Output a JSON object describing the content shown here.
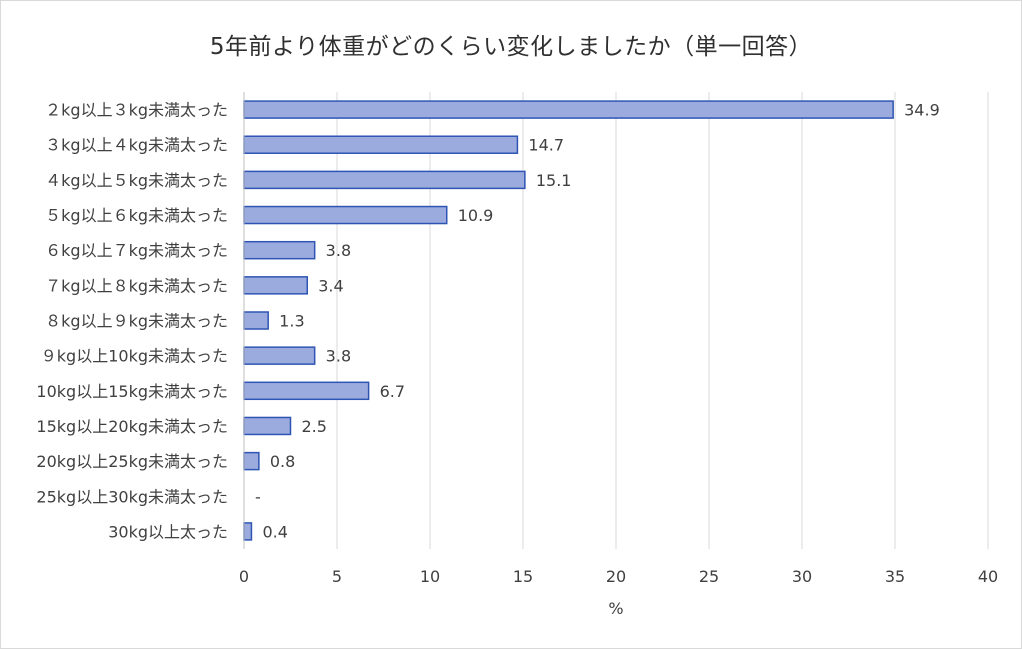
{
  "chart_data": {
    "type": "bar",
    "orientation": "horizontal",
    "title": "5年前より体重がどのくらい変化しましたか（単一回答）",
    "xlabel": "%",
    "ylabel": "",
    "xlim": [
      0,
      40
    ],
    "xticks": [
      0,
      5,
      10,
      15,
      20,
      25,
      30,
      35,
      40
    ],
    "grid": true,
    "legend": "none",
    "bar_color": "#9cabde",
    "bar_border_color": "#2f55b4",
    "categories": [
      "２kg以上３kg未満太った",
      "３kg以上４kg未満太った",
      "４kg以上５kg未満太った",
      "５kg以上６kg未満太った",
      "６kg以上７kg未満太った",
      "７kg以上８kg未満太った",
      "８kg以上９kg未満太った",
      "９kg以上10kg未満太った",
      "10kg以上15kg未満太った",
      "15kg以上20kg未満太った",
      "20kg以上25kg未満太った",
      "25kg以上30kg未満太った",
      "30kg以上太った"
    ],
    "values": [
      34.9,
      14.7,
      15.1,
      10.9,
      3.8,
      3.4,
      1.3,
      3.8,
      6.7,
      2.5,
      0.8,
      null,
      0.4
    ],
    "data_labels": [
      "34.9",
      "14.7",
      "15.1",
      "10.9",
      "3.8",
      "3.4",
      "1.3",
      "3.8",
      "6.7",
      "2.5",
      "0.8",
      "-",
      "0.4"
    ]
  }
}
